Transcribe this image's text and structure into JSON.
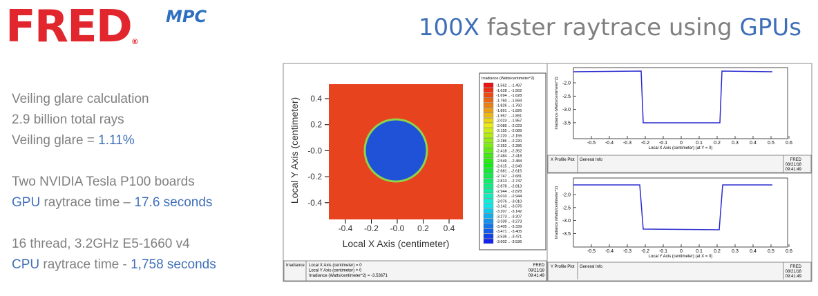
{
  "logo": {
    "name": "FRED",
    "suffix": "MPC",
    "mark": "®"
  },
  "title": [
    {
      "text": "100X",
      "accent": true
    },
    {
      "text": " faster raytrace using ",
      "accent": false
    },
    {
      "text": "GPUs",
      "accent": true
    }
  ],
  "specs": [
    [
      [
        {
          "text": "Veiling glare calculation",
          "accent": false
        }
      ],
      [
        {
          "text": "2.9 billion total rays",
          "accent": false
        }
      ],
      [
        {
          "text": "Veiling glare = ",
          "accent": false
        },
        {
          "text": "1.11%",
          "accent": true
        }
      ]
    ],
    [
      [
        {
          "text": "Two NVIDIA Tesla P100 boards",
          "accent": false
        }
      ],
      [
        {
          "text": "GPU",
          "accent": true
        },
        {
          "text": " raytrace time – ",
          "accent": false
        },
        {
          "text": "17.6 seconds",
          "accent": true
        }
      ]
    ],
    [
      [
        {
          "text": "16 thread, 3.2GHz E5-1660 v4",
          "accent": false
        }
      ],
      [
        {
          "text": "CPU",
          "accent": true
        },
        {
          "text": " raytrace time - ",
          "accent": false
        },
        {
          "text": "1,758 seconds",
          "accent": true
        }
      ]
    ]
  ],
  "map_window": {
    "y_label": "Local Y Axis (centimeter)",
    "x_label": "Local X Axis (centimeter)",
    "y_ticks": [
      "0.4",
      "0.2",
      "-0.0",
      "-0.2",
      "-0.4"
    ],
    "x_ticks": [
      "-0.4",
      "-0.2",
      "-0.0",
      "0.2",
      "0.4"
    ],
    "legend_title": "Irradiance (Watts/centimeter^2)",
    "legend": [
      "-1.562 .. -1.497",
      "-1.628 .. -1.562",
      "-1.694 .. -1.628",
      "-1.760 .. -1.694",
      "-1.826 .. -1.760",
      "-1.891 .. -1.826",
      "-1.957 .. -1.891",
      "-2.023 .. -1.957",
      "-2.089 .. -2.023",
      "-2.155 .. -2.089",
      "-2.220 .. -2.155",
      "-2.286 .. -2.220",
      "-2.352 .. -2.286",
      "-2.418 .. -2.352",
      "-2.484 .. -2.418",
      "-2.549 .. -2.484",
      "-2.615 .. -2.549",
      "-2.681 .. -2.615",
      "-2.747 .. -2.681",
      "-2.813 .. -2.747",
      "-2.878 .. -2.813",
      "-2.944 .. -2.878",
      "-3.010 .. -2.944",
      "-3.076 .. -3.010",
      "-3.142 .. -3.076",
      "-3.207 .. -3.142",
      "-3.273 .. -3.207",
      "-3.339 .. -3.273",
      "-3.405 .. -3.339",
      "-3.471 .. -3.405",
      "-3.536 .. -3.471",
      "-3.602 .. -3.536"
    ],
    "info": {
      "kind": "Irradiance",
      "lines": [
        "Local X Axis (centimeter) = 0",
        "Local Y Axis (centimeter) = 0",
        "Irradiance (Watts/centimeter^2) = -3.53671"
      ],
      "stamp": [
        "FRED",
        "08/21/18",
        "09:41:49"
      ]
    }
  },
  "profiles": [
    {
      "y_label": "Irradiance (Watts/centimeter^2)",
      "x_label": "Local X Axis (centimeter) (at Y = 0)",
      "y_ticks": [
        "-2.0",
        "-2.5",
        "-3.0",
        "-3.5"
      ],
      "x_ticks": [
        "-0.5",
        "-0.4",
        "-0.3",
        "-0.2",
        "-0.1",
        "0",
        "0.1",
        "0.2",
        "0.3",
        "0.4",
        "0.5",
        "0.6"
      ],
      "info": {
        "kind": "X Profile Plot",
        "section": "General Info",
        "stamp": [
          "FRED",
          "08/21/18",
          "09:41:49"
        ]
      }
    },
    {
      "y_label": "Irradiance (Watts/centimeter^2)",
      "x_label": "Local Y Axis (centimeter) (at X = 0)",
      "y_ticks": [
        "-2.0",
        "-2.5",
        "-3.0",
        "-3.5"
      ],
      "x_ticks": [
        "-0.5",
        "-0.4",
        "-0.3",
        "-0.2",
        "-0.1",
        "0",
        "0.1",
        "0.2",
        "0.3",
        "0.4",
        "0.5",
        "0.6"
      ],
      "info": {
        "kind": "Y Profile Plot",
        "section": "General Info",
        "stamp": [
          "FRED",
          "08/21/18",
          "09:41:49"
        ]
      }
    }
  ]
}
